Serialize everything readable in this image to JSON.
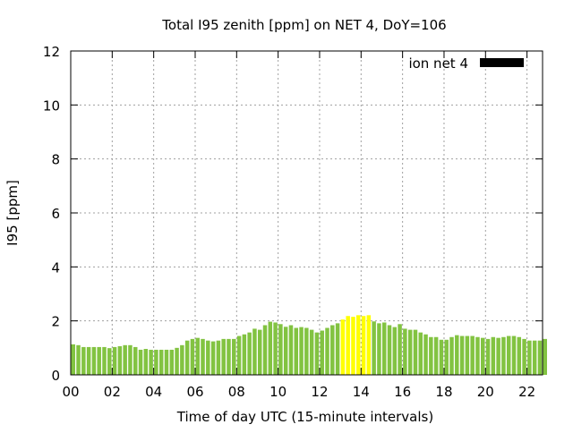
{
  "chart_data": {
    "type": "bar",
    "title": "Total I95 zenith [ppm] on NET 4, DoY=106",
    "xlabel": "Time of day UTC (15-minute intervals)",
    "ylabel": "I95 [ppm]",
    "xlim": [
      0,
      22.75
    ],
    "ylim": [
      0,
      12
    ],
    "xticks": [
      "00",
      "02",
      "04",
      "06",
      "08",
      "10",
      "12",
      "14",
      "16",
      "18",
      "20",
      "22"
    ],
    "xtick_values": [
      0,
      2,
      4,
      6,
      8,
      10,
      12,
      14,
      16,
      18,
      20,
      22
    ],
    "yticks": [
      "0",
      "2",
      "4",
      "6",
      "8",
      "10",
      "12"
    ],
    "ytick_values": [
      0,
      2,
      4,
      6,
      8,
      10,
      12
    ],
    "grid": true,
    "legend": {
      "label": "ion net 4",
      "position": "top-right",
      "color": "#000000"
    },
    "interval_hours": 0.25,
    "highlight_threshold": 2.0,
    "colors": {
      "normal": "#82c341",
      "highlight": "#ffff00"
    },
    "values": [
      1.13,
      1.1,
      1.03,
      1.03,
      1.03,
      1.03,
      1.03,
      0.99,
      1.03,
      1.06,
      1.1,
      1.1,
      1.03,
      0.93,
      0.96,
      0.93,
      0.93,
      0.93,
      0.93,
      0.93,
      1.0,
      1.1,
      1.27,
      1.33,
      1.37,
      1.33,
      1.27,
      1.24,
      1.27,
      1.33,
      1.33,
      1.33,
      1.44,
      1.5,
      1.57,
      1.71,
      1.67,
      1.84,
      1.97,
      1.94,
      1.88,
      1.78,
      1.84,
      1.74,
      1.77,
      1.74,
      1.67,
      1.57,
      1.64,
      1.74,
      1.84,
      1.91,
      2.05,
      2.18,
      2.15,
      2.21,
      2.18,
      2.21,
      1.98,
      1.91,
      1.94,
      1.84,
      1.77,
      1.88,
      1.71,
      1.67,
      1.67,
      1.57,
      1.5,
      1.4,
      1.4,
      1.3,
      1.3,
      1.4,
      1.47,
      1.44,
      1.44,
      1.44,
      1.4,
      1.37,
      1.33,
      1.4,
      1.37,
      1.4,
      1.44,
      1.44,
      1.4,
      1.33,
      1.27,
      1.27,
      1.27,
      1.33
    ]
  }
}
